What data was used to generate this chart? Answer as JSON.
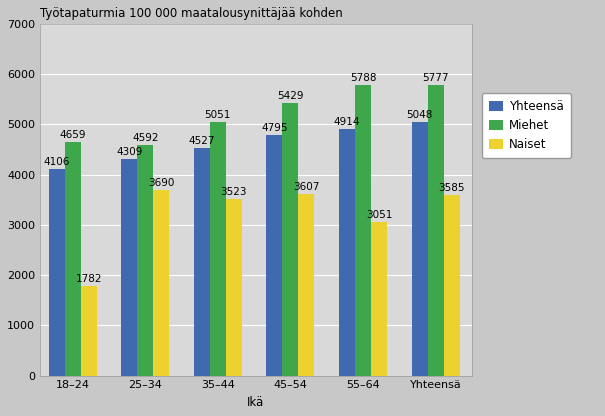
{
  "title": "Työtapaturmia 100 000 maatalousynittäjää kohden",
  "xlabel": "Ikä",
  "categories": [
    "18–24",
    "25–34",
    "35–44",
    "45–54",
    "55–64",
    "Yhteensä"
  ],
  "series": {
    "Yhteensä": [
      4106,
      4309,
      4527,
      4795,
      4914,
      5048
    ],
    "Miehet": [
      4659,
      4592,
      5051,
      5429,
      5788,
      5777
    ],
    "Naiset": [
      1782,
      3690,
      3523,
      3607,
      3051,
      3585
    ]
  },
  "colors": {
    "Yhteensä": "#4169B0",
    "Miehet": "#3EA64B",
    "Naiset": "#EDD22F"
  },
  "ylim": [
    0,
    7000
  ],
  "yticks": [
    0,
    1000,
    2000,
    3000,
    4000,
    5000,
    6000,
    7000
  ],
  "bar_width": 0.22,
  "figure_bg": "#C8C8C8",
  "plot_bg": "#D9D9D9",
  "grid_color": "#FFFFFF",
  "label_fontsize": 7.5,
  "title_fontsize": 8.5,
  "tick_fontsize": 8,
  "axis_label_fontsize": 8.5,
  "legend_fontsize": 8.5
}
